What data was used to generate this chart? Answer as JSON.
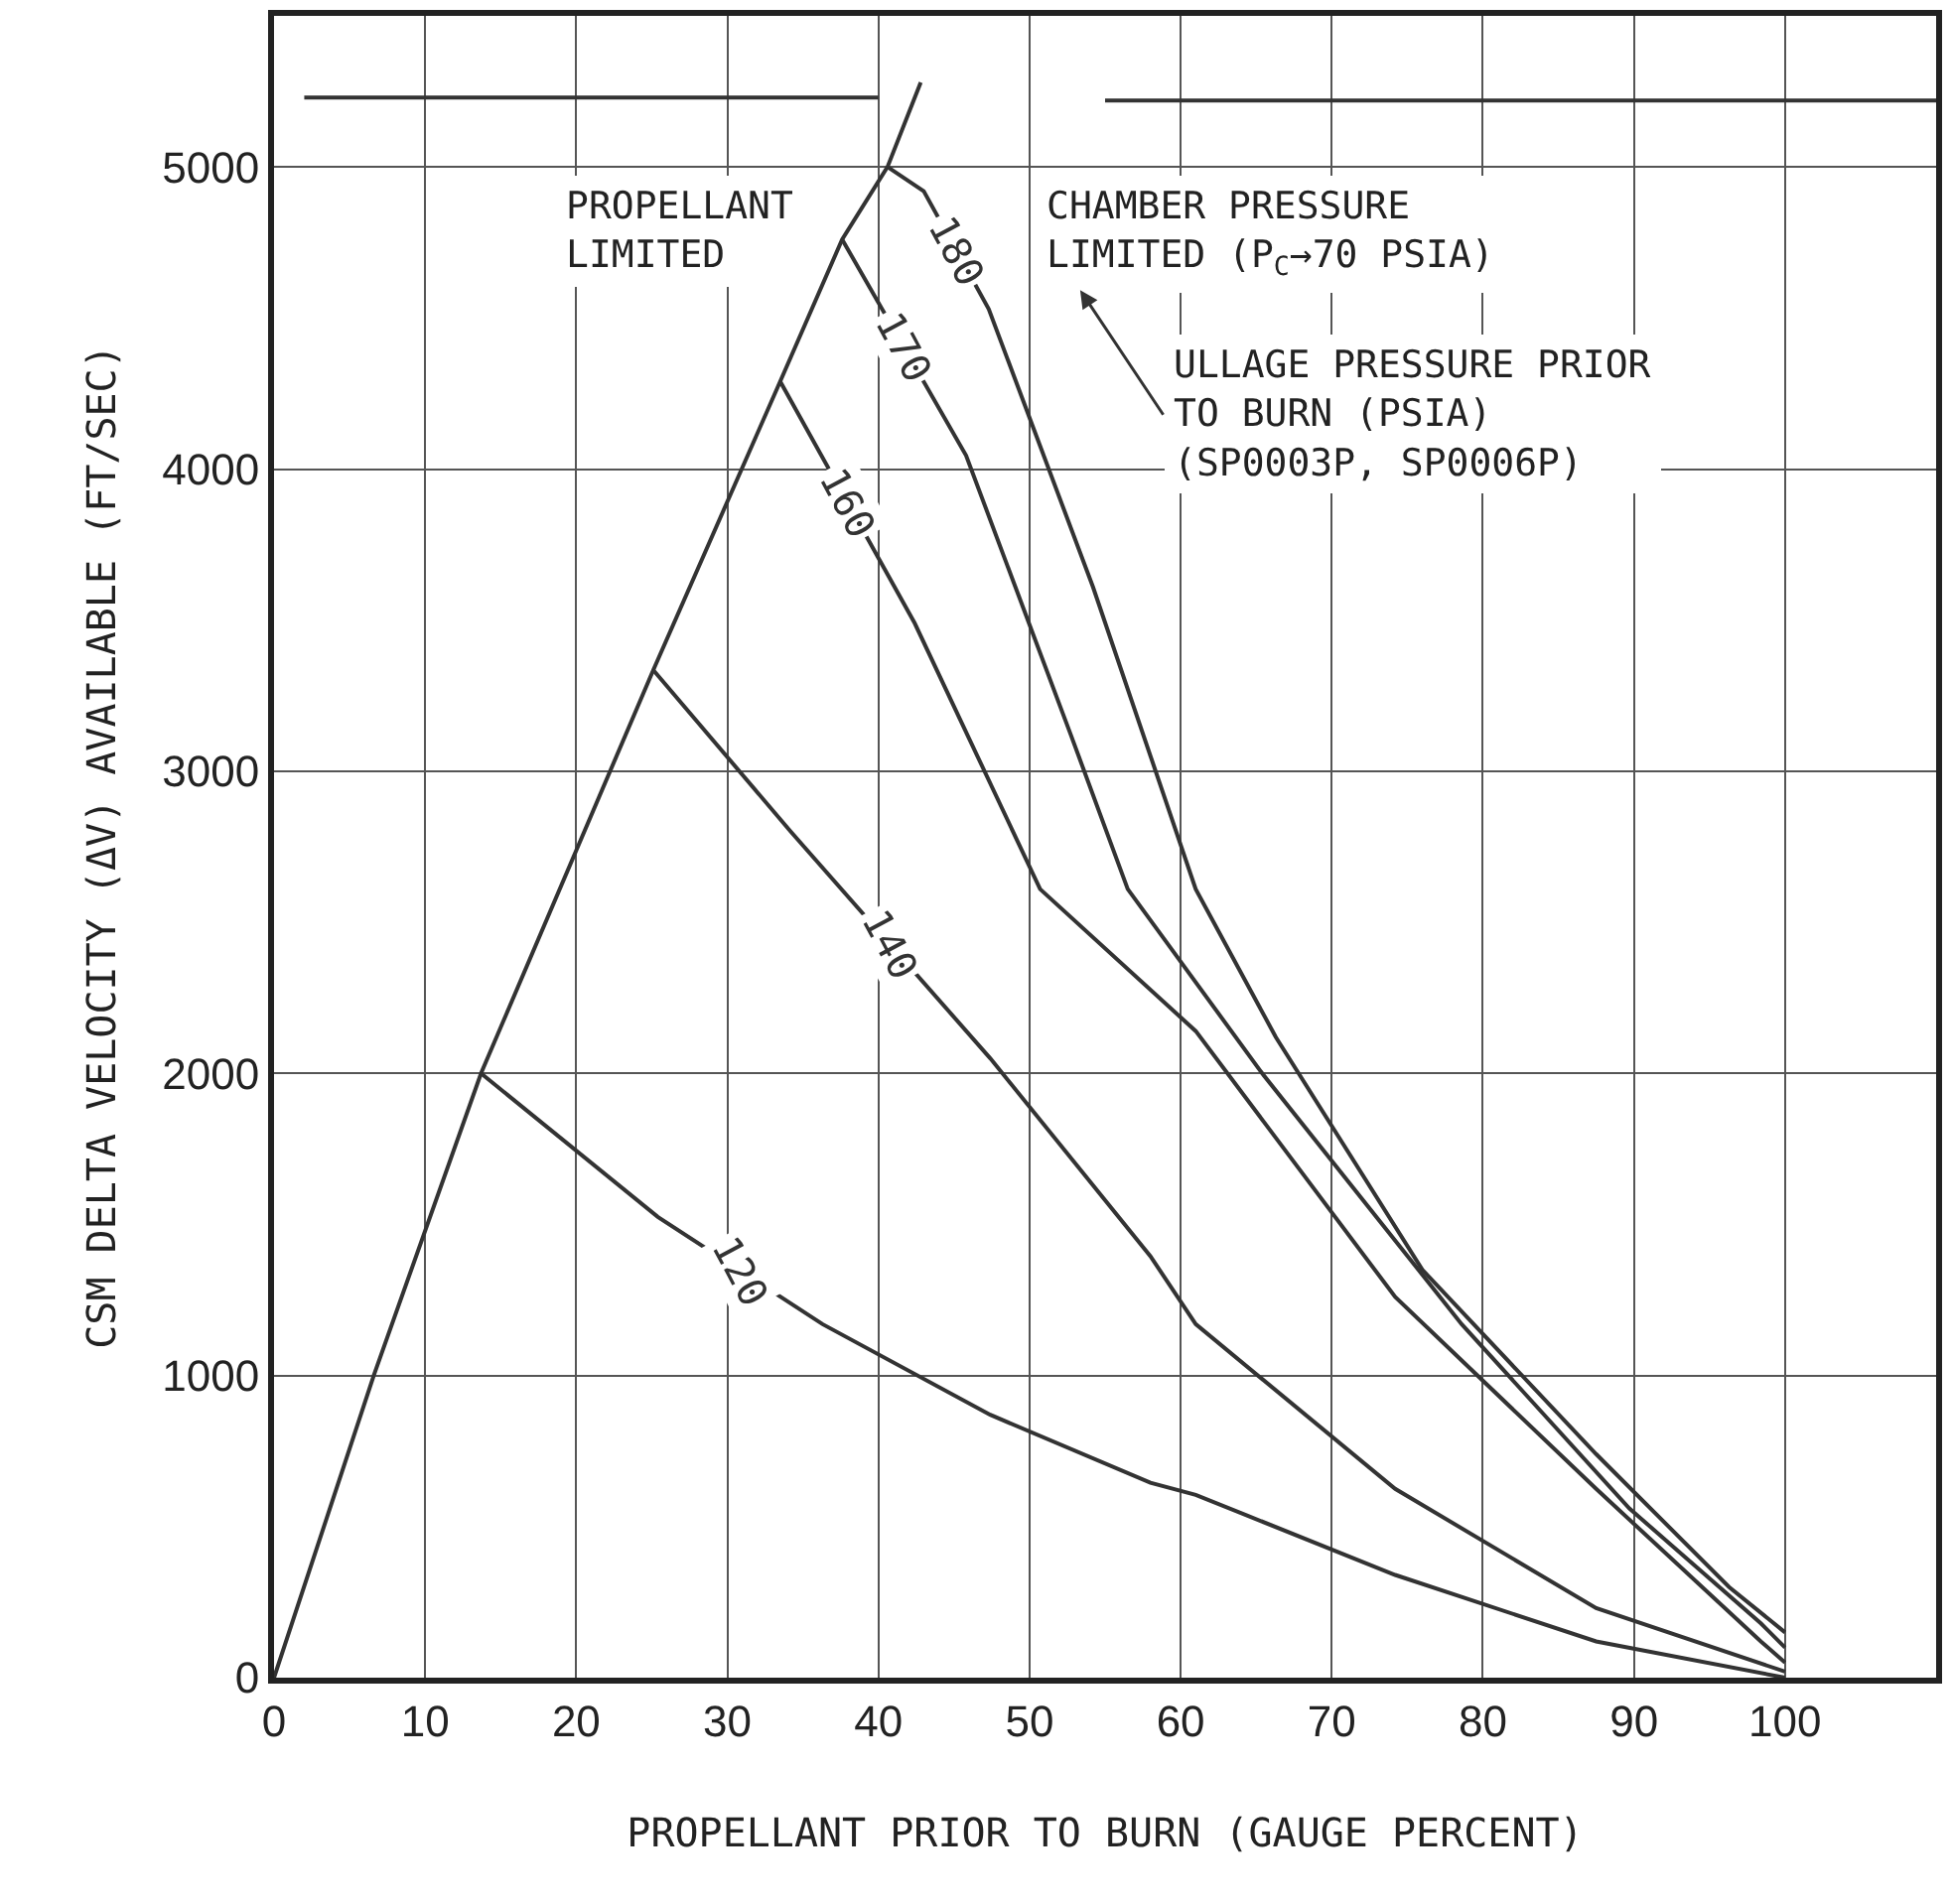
{
  "chart_data": {
    "type": "line",
    "xlabel": "PROPELLANT PRIOR TO BURN (GAUGE PERCENT)",
    "ylabel": "CSM DELTA VELOCITY (ΔV) AVAILABLE (FT/SEC)",
    "xlim": [
      0,
      110
    ],
    "xticks": [
      0,
      10,
      20,
      30,
      40,
      50,
      60,
      70,
      80,
      90,
      100
    ],
    "ylim": [
      0,
      5500
    ],
    "yticks": [
      0,
      1000,
      2000,
      3000,
      4000,
      5000
    ],
    "grid": true,
    "legend": false,
    "marker": "none",
    "line_style": "solid",
    "series": [
      {
        "color": "#333333",
        "x": [
          0,
          6.6,
          13.7,
          25.1,
          33.5,
          37.6,
          40.6,
          42.8
        ],
        "values": [
          0,
          1000,
          2000,
          3335,
          4290,
          4760,
          5000,
          5280
        ]
      },
      {
        "name": "180",
        "color": "#333333",
        "x": [
          40.6,
          43,
          47.3,
          54.2,
          61,
          66.3,
          76,
          87.5,
          96.3,
          100
        ],
        "values": [
          5000,
          4920,
          4530,
          3610,
          2610,
          2120,
          1350,
          740,
          300,
          150
        ]
      },
      {
        "name": "170",
        "color": "#333333",
        "x": [
          37.6,
          45.8,
          52.7,
          56.5,
          65.4,
          78.6,
          89.7,
          98.4,
          100
        ],
        "values": [
          4760,
          4045,
          3125,
          2610,
          2000,
          1170,
          560,
          180,
          100
        ]
      },
      {
        "name": "160",
        "color": "#333333",
        "x": [
          33.5,
          42.4,
          50.7,
          61,
          74.2,
          87.5,
          98.4,
          100
        ],
        "values": [
          4290,
          3490,
          2610,
          2140,
          1260,
          625,
          120,
          50
        ]
      },
      {
        "name": "140",
        "color": "#333333",
        "x": [
          25.1,
          34.2,
          47.4,
          58,
          61,
          74.2,
          87.5,
          100
        ],
        "values": [
          3335,
          2800,
          2050,
          1395,
          1170,
          625,
          230,
          20
        ]
      },
      {
        "name": "120",
        "color": "#333333",
        "x": [
          13.7,
          25.4,
          36.3,
          47.4,
          58,
          61,
          74.2,
          87.5,
          100
        ],
        "values": [
          2000,
          1525,
          1170,
          870,
          645,
          605,
          340,
          120,
          0
        ]
      },
      {
        "color": "#333333",
        "x": [
          2,
          40
        ],
        "values": [
          5230,
          5230
        ]
      },
      {
        "color": "#333333",
        "x": [
          55,
          110
        ],
        "values": [
          5220,
          5220
        ]
      }
    ],
    "annotations": [
      "PROPELLANT\nLIMITED",
      "CHAMBER PRESSURE\nLIMITED (P$_{C}$→70 PSIA)",
      "ULLAGE PRESSURE PRIOR\nTO BURN (PSIA)\n(SP0003P, SP0006P)"
    ]
  }
}
